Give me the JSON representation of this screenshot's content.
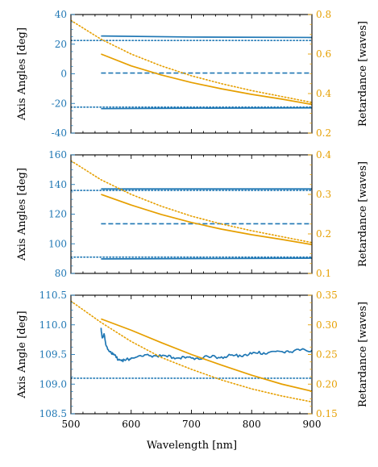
{
  "colors": {
    "left": "#1f77b4",
    "right": "#e69f00",
    "text": "#000000"
  },
  "xlabel": "Wavelength [nm]",
  "chart_data": [
    {
      "type": "line",
      "xlim": [
        500,
        900
      ],
      "ylabel": "Axis Angles [deg]",
      "ylim": [
        -40,
        40
      ],
      "yticks": [
        -40,
        -20,
        0,
        20,
        40
      ],
      "ylabel_right": "Retardance [waves]",
      "ylim_right": [
        0.2,
        0.8
      ],
      "yticks_right": [
        "0.2",
        "0.4",
        "0.6",
        "0.8"
      ],
      "series": [
        {
          "axis": "left",
          "style": "solid",
          "x": [
            550,
            700,
            900
          ],
          "values": [
            25.5,
            24.8,
            24.5
          ]
        },
        {
          "axis": "left",
          "style": "dashed",
          "x": [
            550,
            900
          ],
          "values": [
            0.5,
            0.5
          ]
        },
        {
          "axis": "left",
          "style": "solid",
          "x": [
            550,
            700,
            900
          ],
          "values": [
            -23.5,
            -23.2,
            -23.0
          ]
        },
        {
          "axis": "left",
          "style": "dotted",
          "x": [
            500,
            900
          ],
          "values": [
            22.5,
            22.5
          ]
        },
        {
          "axis": "left",
          "style": "dotted",
          "x": [
            500,
            900
          ],
          "values": [
            -22.5,
            -22.5
          ]
        },
        {
          "axis": "right",
          "style": "solid",
          "x": [
            550,
            600,
            650,
            700,
            750,
            800,
            850,
            900
          ],
          "values": [
            0.6,
            0.54,
            0.494,
            0.456,
            0.424,
            0.396,
            0.372,
            0.345
          ]
        },
        {
          "axis": "right",
          "style": "dotted",
          "x": [
            500,
            550,
            600,
            650,
            700,
            750,
            800,
            850,
            900
          ],
          "values": [
            0.77,
            0.675,
            0.6,
            0.54,
            0.49,
            0.45,
            0.415,
            0.385,
            0.355
          ]
        }
      ]
    },
    {
      "type": "line",
      "xlim": [
        500,
        900
      ],
      "ylabel": "Axis Angles [deg]",
      "ylim": [
        80,
        160
      ],
      "yticks": [
        80,
        100,
        120,
        140,
        160
      ],
      "ylabel_right": "Retardance [waves]",
      "ylim_right": [
        0.1,
        0.4
      ],
      "yticks_right": [
        "0.1",
        "0.2",
        "0.3",
        "0.4"
      ],
      "series": [
        {
          "axis": "left",
          "style": "solid",
          "x": [
            550,
            900
          ],
          "values": [
            137,
            137
          ]
        },
        {
          "axis": "left",
          "style": "dashed",
          "x": [
            550,
            900
          ],
          "values": [
            113.5,
            113.5
          ]
        },
        {
          "axis": "left",
          "style": "solid",
          "x": [
            550,
            900
          ],
          "values": [
            89.8,
            90.3
          ]
        },
        {
          "axis": "left",
          "style": "dotted",
          "x": [
            500,
            900
          ],
          "values": [
            136,
            136
          ]
        },
        {
          "axis": "left",
          "style": "dotted",
          "x": [
            500,
            900
          ],
          "values": [
            91,
            91
          ]
        },
        {
          "axis": "right",
          "style": "solid",
          "x": [
            550,
            600,
            650,
            700,
            750,
            800,
            850,
            900
          ],
          "values": [
            0.3,
            0.273,
            0.249,
            0.229,
            0.212,
            0.198,
            0.186,
            0.173
          ]
        },
        {
          "axis": "right",
          "style": "dotted",
          "x": [
            500,
            550,
            600,
            650,
            700,
            750,
            800,
            850,
            900
          ],
          "values": [
            0.385,
            0.337,
            0.3,
            0.27,
            0.245,
            0.225,
            0.208,
            0.193,
            0.178
          ]
        }
      ]
    },
    {
      "type": "line",
      "xlim": [
        500,
        900
      ],
      "ylabel": "Axis Angle [deg]",
      "ylim": [
        108.5,
        110.5
      ],
      "yticks": [
        "108.5",
        "109.0",
        "109.5",
        "110.0",
        "110.5"
      ],
      "ylabel_right": "Retardance [waves]",
      "ylim_right": [
        0.15,
        0.35
      ],
      "yticks_right": [
        "0.15",
        "0.20",
        "0.25",
        "0.30",
        "0.35"
      ],
      "series": [
        {
          "axis": "left",
          "style": "solid",
          "noisy": true,
          "x": [
            550,
            552,
            555,
            558,
            562,
            566,
            570,
            575,
            580,
            585,
            590,
            595,
            600,
            610,
            620,
            630,
            640,
            650,
            660,
            670,
            680,
            690,
            700,
            710,
            720,
            730,
            740,
            750,
            760,
            770,
            780,
            790,
            800,
            810,
            820,
            830,
            840,
            850,
            860,
            870,
            880,
            890,
            900
          ],
          "values": [
            109.95,
            109.78,
            109.85,
            109.66,
            109.58,
            109.55,
            109.5,
            109.45,
            109.42,
            109.41,
            109.4,
            109.42,
            109.44,
            109.46,
            109.47,
            109.48,
            109.48,
            109.47,
            109.46,
            109.45,
            109.44,
            109.44,
            109.44,
            109.44,
            109.45,
            109.45,
            109.46,
            109.46,
            109.47,
            109.48,
            109.49,
            109.5,
            109.51,
            109.52,
            109.53,
            109.54,
            109.55,
            109.55,
            109.56,
            109.56,
            109.57,
            109.57,
            109.57
          ]
        },
        {
          "axis": "left",
          "style": "dotted",
          "x": [
            500,
            900
          ],
          "values": [
            109.1,
            109.1
          ]
        },
        {
          "axis": "right",
          "style": "solid",
          "x": [
            550,
            600,
            650,
            700,
            750,
            800,
            850,
            900
          ],
          "values": [
            0.31,
            0.291,
            0.27,
            0.25,
            0.232,
            0.215,
            0.2,
            0.188
          ]
        },
        {
          "axis": "right",
          "style": "dotted",
          "x": [
            500,
            550,
            600,
            650,
            700,
            750,
            800,
            850,
            900
          ],
          "values": [
            0.34,
            0.304,
            0.272,
            0.245,
            0.225,
            0.207,
            0.192,
            0.18,
            0.17
          ]
        }
      ]
    }
  ]
}
